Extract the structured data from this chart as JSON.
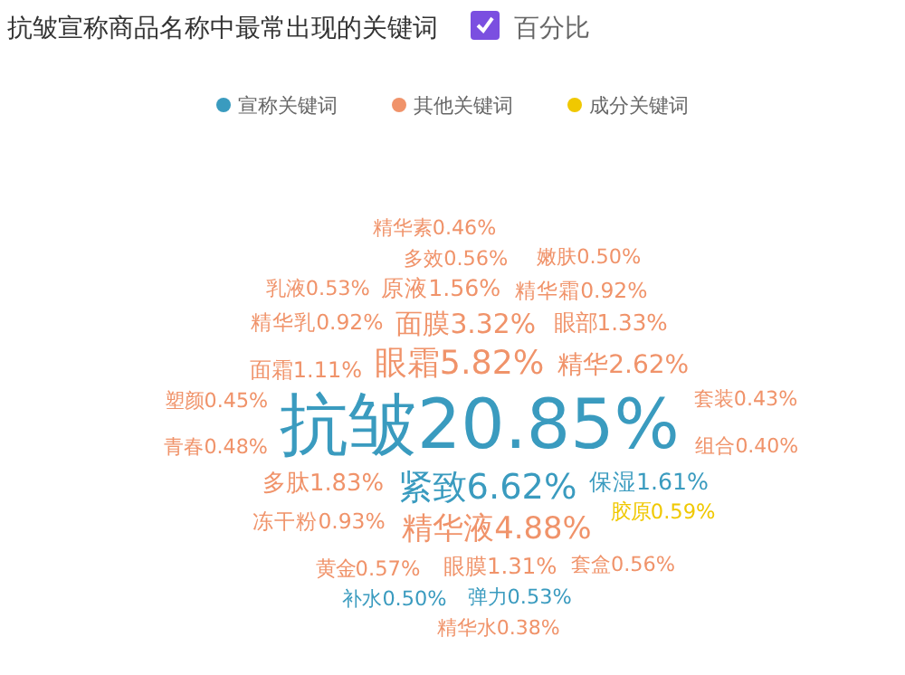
{
  "chart_data": {
    "type": "other",
    "title": "抗皱宣称商品名称中最常出现的关键词",
    "annotations": [
      "百分比"
    ],
    "legend": "top",
    "categories": [
      "套装",
      "乳液",
      "嫩肤",
      "面霜",
      "保湿",
      "精华水",
      "塑颜",
      "冻干粉",
      "弹力",
      "多肽",
      "组合",
      "眼部",
      "精华",
      "眼膜",
      "原液",
      "胶原",
      "多效",
      "面膜",
      "抗皱",
      "精华液",
      "精华霜",
      "青春",
      "精华乳",
      "紧致",
      "黄金",
      "套盒",
      "眼霜",
      "精华素",
      "补水"
    ],
    "series": [
      {
        "name": "宣称关键词",
        "color": "#3a9bbf",
        "values": [
          null,
          null,
          null,
          null,
          1.61,
          null,
          null,
          null,
          0.53,
          null,
          null,
          null,
          null,
          null,
          null,
          null,
          null,
          null,
          20.85,
          null,
          null,
          null,
          null,
          6.62,
          null,
          null,
          null,
          null,
          0.5
        ],
        "value_labels": [
          null,
          null,
          null,
          null,
          "1.61%",
          null,
          null,
          null,
          "0.53%",
          null,
          null,
          null,
          null,
          null,
          null,
          null,
          null,
          null,
          "20.85%",
          null,
          null,
          null,
          null,
          "6.62%",
          null,
          null,
          null,
          null,
          "0.50%"
        ]
      },
      {
        "name": "其他关键词",
        "color": "#f0936a",
        "values": [
          0.43,
          0.53,
          0.5,
          1.11,
          null,
          0.38,
          0.45,
          0.93,
          null,
          1.83,
          0.4,
          1.33,
          2.62,
          1.31,
          1.56,
          null,
          0.56,
          3.32,
          null,
          4.88,
          0.92,
          0.48,
          0.92,
          null,
          0.57,
          0.56,
          5.82,
          0.46,
          null
        ],
        "value_labels": [
          "0.43%",
          "0.53%",
          "0.50%",
          "1.11%",
          null,
          "0.38%",
          "0.45%",
          "0.93%",
          null,
          "1.83%",
          "0.40%",
          "1.33%",
          "2.62%",
          "1.31%",
          "1.56%",
          null,
          "0.56%",
          "3.32%",
          null,
          "4.88%",
          "0.92%",
          "0.48%",
          "0.92%",
          null,
          "0.57%",
          "0.56%",
          "5.82%",
          "0.46%",
          null
        ]
      },
      {
        "name": "成分关键词",
        "color": "#f0c800",
        "values": [
          null,
          null,
          null,
          null,
          null,
          null,
          null,
          null,
          null,
          null,
          null,
          null,
          null,
          null,
          null,
          0.59,
          null,
          null,
          null,
          null,
          null,
          null,
          null,
          null,
          null,
          null,
          null,
          null,
          null
        ],
        "value_labels": [
          null,
          null,
          null,
          null,
          null,
          null,
          null,
          null,
          null,
          null,
          null,
          null,
          null,
          null,
          null,
          "0.59%",
          null,
          null,
          null,
          null,
          null,
          null,
          null,
          null,
          null,
          null,
          null,
          null,
          null
        ]
      }
    ]
  }
}
